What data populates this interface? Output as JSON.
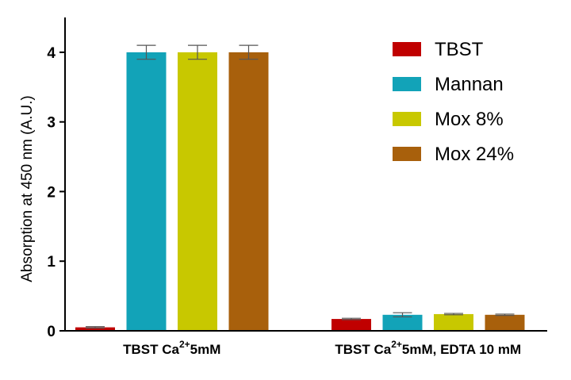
{
  "chart_data": {
    "type": "bar",
    "ylabel": "Absorption at 450 nm (A.U.)",
    "ylim": [
      0,
      4.5
    ],
    "yticks": [
      "0",
      "1",
      "2",
      "3",
      "4"
    ],
    "categories": [
      {
        "main": "TBST Ca",
        "sup": "2+",
        "rest": "5mM"
      },
      {
        "main": "TBST Ca",
        "sup": "2+",
        "rest": "5mM, EDTA 10 mM"
      }
    ],
    "series": [
      {
        "name": "TBST",
        "color": "#c00000",
        "values": [
          0.05,
          0.17
        ],
        "errors": [
          0.01,
          0.01
        ]
      },
      {
        "name": "Mannan",
        "color": "#12a3b8",
        "values": [
          4.0,
          0.23
        ],
        "errors": [
          0.1,
          0.03
        ]
      },
      {
        "name": "Mox 8%",
        "color": "#c8c800",
        "values": [
          4.0,
          0.24
        ],
        "errors": [
          0.1,
          0.01
        ]
      },
      {
        "name": "Mox 24%",
        "color": "#a8600c",
        "values": [
          4.0,
          0.23
        ],
        "errors": [
          0.1,
          0.01
        ]
      }
    ],
    "grid": false,
    "legend": "top-right"
  }
}
